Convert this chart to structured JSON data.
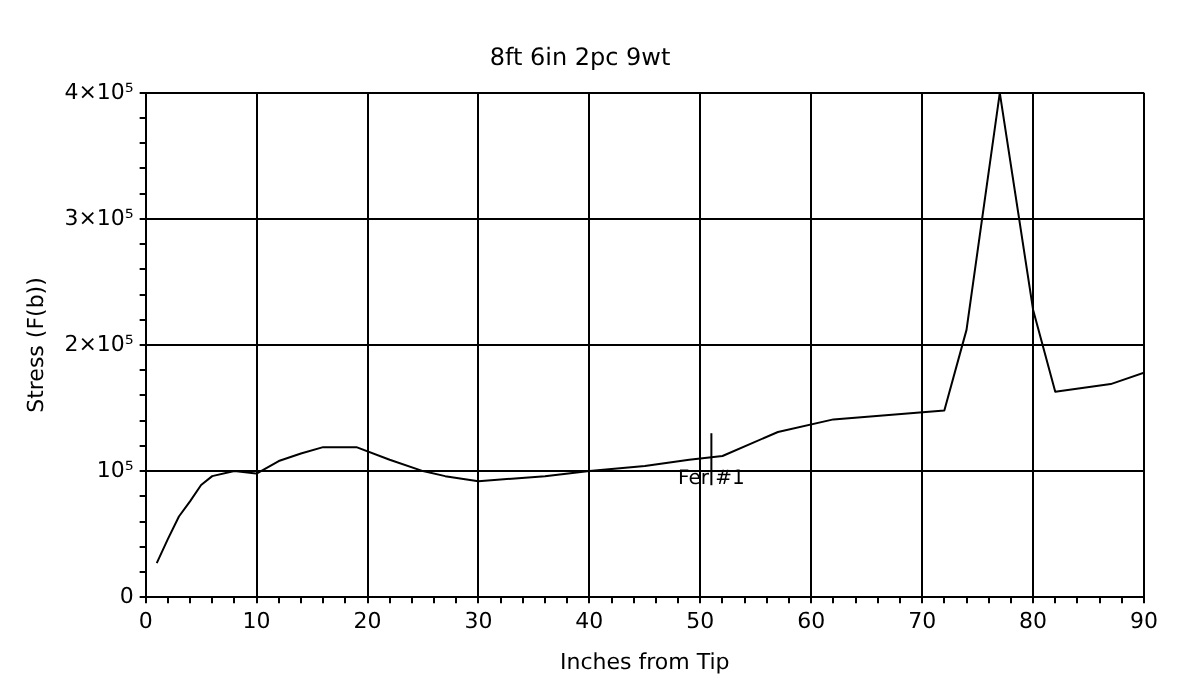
{
  "chart_data": {
    "type": "line",
    "title": "8ft 6in 2pc 9wt",
    "xlabel": "Inches from Tip",
    "ylabel": "Stress (F(b))",
    "series": [
      {
        "color": "#000000",
        "x": [
          1,
          2,
          3,
          4,
          5,
          6,
          8,
          10,
          12,
          14,
          16,
          19,
          22,
          25,
          27,
          30,
          33,
          36,
          40,
          45,
          49,
          52,
          57,
          62,
          72,
          74,
          77,
          80,
          82,
          87,
          90
        ],
        "values": [
          27000,
          46000,
          64000,
          76000,
          89000,
          96000,
          100000,
          98000,
          108000,
          114000,
          119000,
          119000,
          109000,
          100000,
          96000,
          92000,
          94000,
          96000,
          100000,
          104000,
          109000,
          112000,
          131000,
          141000,
          148000,
          212000,
          400000,
          228000,
          163000,
          169000,
          178000
        ]
      }
    ],
    "annotations": [
      {
        "text": "Fer #1",
        "x": 51,
        "y": 111000
      }
    ],
    "xlim": [
      0,
      90
    ],
    "ylim": [
      0,
      400000
    ],
    "xticks": [
      0,
      {
        "value": 2,
        "label": null
      },
      {
        "value": 4,
        "label": null
      },
      {
        "value": 6,
        "label": null
      },
      {
        "value": 8,
        "label": null
      },
      10,
      {
        "value": 12,
        "label": null
      },
      {
        "value": 14,
        "label": null
      },
      {
        "value": 16,
        "label": null
      },
      {
        "value": 18,
        "label": null
      },
      20,
      {
        "value": 22,
        "label": null
      },
      {
        "value": 24,
        "label": null
      },
      {
        "value": 26,
        "label": null
      },
      {
        "value": 28,
        "label": null
      },
      30,
      {
        "value": 32,
        "label": null
      },
      {
        "value": 34,
        "label": null
      },
      {
        "value": 36,
        "label": null
      },
      {
        "value": 38,
        "label": null
      },
      40,
      {
        "value": 42,
        "label": null
      },
      {
        "value": 44,
        "label": null
      },
      {
        "value": 46,
        "label": null
      },
      {
        "value": 48,
        "label": null
      },
      50,
      {
        "value": 52,
        "label": null
      },
      {
        "value": 54,
        "label": null
      },
      {
        "value": 56,
        "label": null
      },
      {
        "value": 58,
        "label": null
      },
      60,
      {
        "value": 62,
        "label": null
      },
      {
        "value": 64,
        "label": null
      },
      {
        "value": 66,
        "label": null
      },
      {
        "value": 68,
        "label": null
      },
      70,
      {
        "value": 72,
        "label": null
      },
      {
        "value": 74,
        "label": null
      },
      {
        "value": 76,
        "label": null
      },
      {
        "value": 78,
        "label": null
      },
      80,
      {
        "value": 82,
        "label": null
      },
      {
        "value": 84,
        "label": null
      },
      {
        "value": 86,
        "label": null
      },
      {
        "value": 88,
        "label": null
      },
      90
    ],
    "yticks": [
      0,
      {
        "value": 20000,
        "label": null
      },
      {
        "value": 40000,
        "label": null
      },
      {
        "value": 60000,
        "label": null
      },
      {
        "value": 80000,
        "label": null
      },
      {
        "value": 100000,
        "label": "10⁵"
      },
      {
        "value": 120000,
        "label": null
      },
      {
        "value": 140000,
        "label": null
      },
      {
        "value": 160000,
        "label": null
      },
      {
        "value": 180000,
        "label": null
      },
      {
        "value": 200000,
        "label": "2×10⁵"
      },
      {
        "value": 220000,
        "label": null
      },
      {
        "value": 240000,
        "label": null
      },
      {
        "value": 260000,
        "label": null
      },
      {
        "value": 280000,
        "label": null
      },
      {
        "value": 300000,
        "label": "3×10⁵"
      },
      {
        "value": 320000,
        "label": null
      },
      {
        "value": 340000,
        "label": null
      },
      {
        "value": 360000,
        "label": null
      },
      {
        "value": 380000,
        "label": null
      },
      {
        "value": 400000,
        "label": "4×10⁵"
      }
    ],
    "grid": true,
    "legend": false,
    "marker": "none",
    "line_style": "solid"
  }
}
